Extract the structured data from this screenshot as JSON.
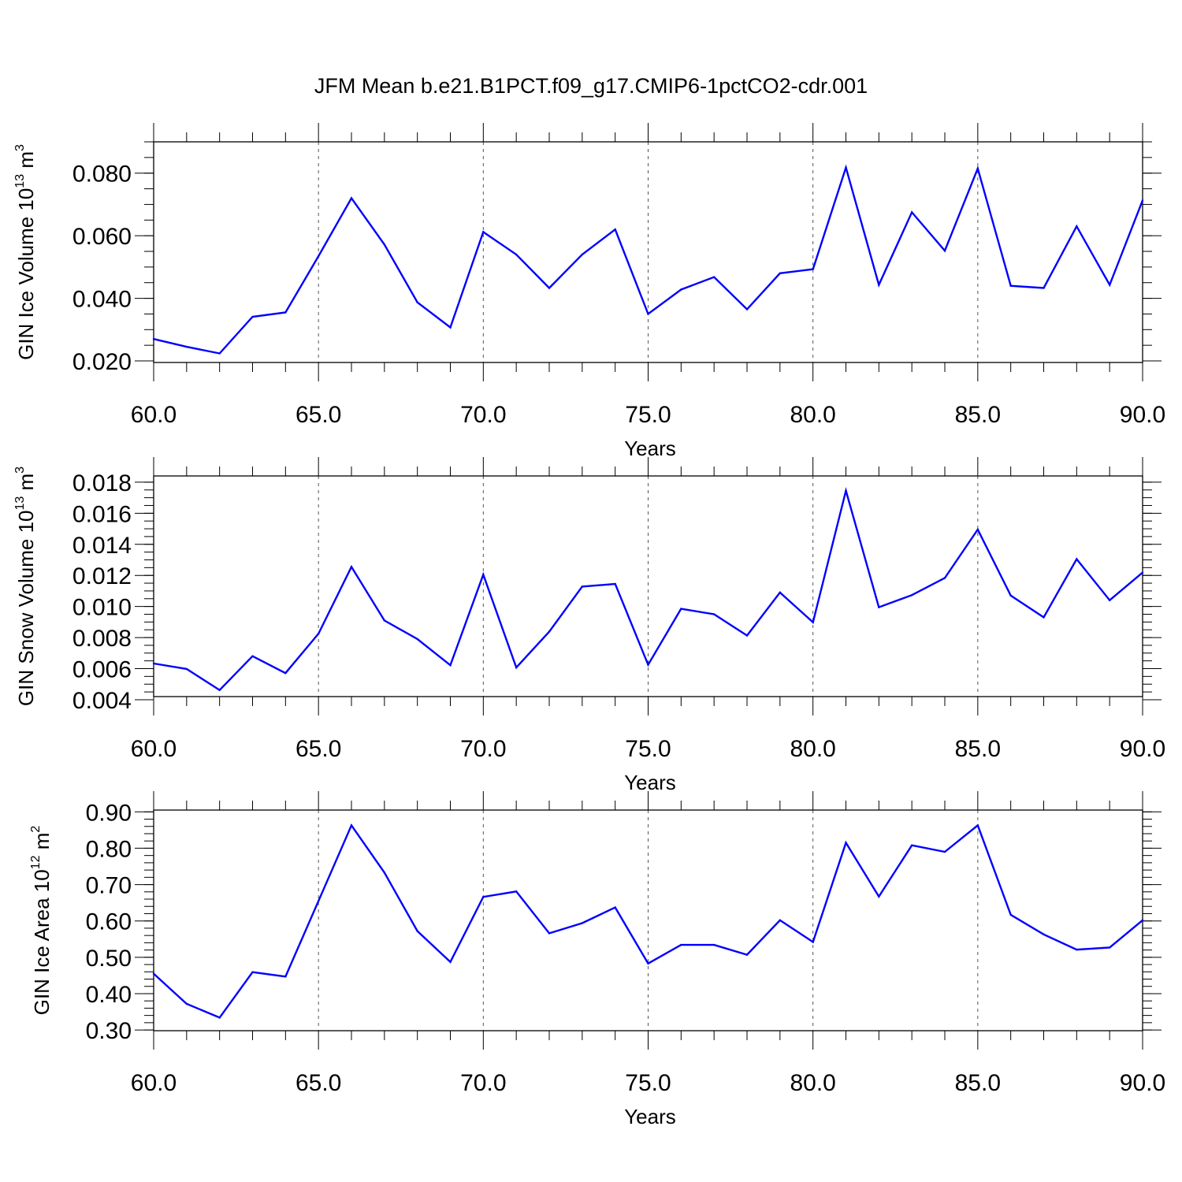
{
  "figure": {
    "title": "JFM Mean b.e21.B1PCT.f09_g17.CMIP6-1pctCO2-cdr.001",
    "line_color": "#0000ff",
    "grid": "dashed vertical lines at major x ticks"
  },
  "chart_data": [
    {
      "type": "line",
      "ylabel_base": "GIN Ice Volume 10",
      "ylabel_exp": "13",
      "ylabel_unit": " m",
      "ylabel_unit_exp": "3",
      "xlabel": "Years",
      "xlim": [
        60,
        90
      ],
      "ylim": [
        0.0195,
        0.09
      ],
      "x_ticks": [
        60,
        65,
        70,
        75,
        80,
        85,
        90
      ],
      "x_tick_labels": [
        "60.0",
        "65.0",
        "70.0",
        "75.0",
        "80.0",
        "85.0",
        "90.0"
      ],
      "y_ticks": [
        0.02,
        0.04,
        0.06,
        0.08
      ],
      "y_tick_labels": [
        "0.020",
        "0.040",
        "0.060",
        "0.080"
      ],
      "y_minor_step": 0.005,
      "x": [
        60,
        61,
        62,
        63,
        64,
        65,
        66,
        67,
        68,
        69,
        70,
        71,
        72,
        73,
        74,
        75,
        76,
        77,
        78,
        79,
        80,
        81,
        82,
        83,
        84,
        85,
        86,
        87,
        88,
        89,
        90
      ],
      "y": [
        0.027,
        0.0245,
        0.0224,
        0.0341,
        0.0355,
        0.0535,
        0.072,
        0.0572,
        0.0387,
        0.0307,
        0.0612,
        0.054,
        0.0433,
        0.054,
        0.062,
        0.035,
        0.0428,
        0.0468,
        0.0365,
        0.048,
        0.0493,
        0.0818,
        0.0443,
        0.0675,
        0.0552,
        0.0815,
        0.044,
        0.0433,
        0.063,
        0.0443,
        0.0713
      ]
    },
    {
      "type": "line",
      "ylabel_base": "GIN Snow Volume 10",
      "ylabel_exp": "13",
      "ylabel_unit": " m",
      "ylabel_unit_exp": "3",
      "xlabel": "Years",
      "xlim": [
        60,
        90
      ],
      "ylim": [
        0.0042,
        0.0184
      ],
      "x_ticks": [
        60,
        65,
        70,
        75,
        80,
        85,
        90
      ],
      "x_tick_labels": [
        "60.0",
        "65.0",
        "70.0",
        "75.0",
        "80.0",
        "85.0",
        "90.0"
      ],
      "y_ticks": [
        0.004,
        0.006,
        0.008,
        0.01,
        0.012,
        0.014,
        0.016,
        0.018
      ],
      "y_tick_labels": [
        "0.004",
        "0.006",
        "0.008",
        "0.010",
        "0.012",
        "0.014",
        "0.016",
        "0.018"
      ],
      "y_minor_step": 0.0005,
      "x": [
        60,
        61,
        62,
        63,
        64,
        65,
        66,
        67,
        68,
        69,
        70,
        71,
        72,
        73,
        74,
        75,
        76,
        77,
        78,
        79,
        80,
        81,
        82,
        83,
        84,
        85,
        86,
        87,
        88,
        89,
        90
      ],
      "y": [
        0.00633,
        0.00598,
        0.00462,
        0.0068,
        0.00571,
        0.00825,
        0.01255,
        0.0091,
        0.0079,
        0.00622,
        0.01205,
        0.00607,
        0.00838,
        0.01128,
        0.01145,
        0.00625,
        0.00985,
        0.0095,
        0.00813,
        0.0109,
        0.00898,
        0.01745,
        0.00995,
        0.01073,
        0.01183,
        0.01495,
        0.0107,
        0.0093,
        0.01305,
        0.0104,
        0.01218
      ]
    },
    {
      "type": "line",
      "ylabel_base": "GIN Ice Area 10",
      "ylabel_exp": "12",
      "ylabel_unit": " m",
      "ylabel_unit_exp": "2",
      "xlabel": "Years",
      "xlim": [
        60,
        90
      ],
      "ylim": [
        0.298,
        0.905
      ],
      "x_ticks": [
        60,
        65,
        70,
        75,
        80,
        85,
        90
      ],
      "x_tick_labels": [
        "60.0",
        "65.0",
        "70.0",
        "75.0",
        "80.0",
        "85.0",
        "90.0"
      ],
      "y_ticks": [
        0.3,
        0.4,
        0.5,
        0.6,
        0.7,
        0.8,
        0.9
      ],
      "y_tick_labels": [
        "0.30",
        "0.40",
        "0.50",
        "0.60",
        "0.70",
        "0.80",
        "0.90"
      ],
      "y_minor_step": 0.02,
      "x": [
        60,
        61,
        62,
        63,
        64,
        65,
        66,
        67,
        68,
        69,
        70,
        71,
        72,
        73,
        74,
        75,
        76,
        77,
        78,
        79,
        80,
        81,
        82,
        83,
        84,
        85,
        86,
        87,
        88,
        89,
        90
      ],
      "y": [
        0.455,
        0.372,
        0.334,
        0.459,
        0.447,
        0.655,
        0.863,
        0.733,
        0.572,
        0.487,
        0.666,
        0.681,
        0.566,
        0.594,
        0.637,
        0.483,
        0.534,
        0.534,
        0.507,
        0.602,
        0.542,
        0.815,
        0.667,
        0.808,
        0.79,
        0.863,
        0.617,
        0.563,
        0.521,
        0.527,
        0.602
      ]
    }
  ]
}
